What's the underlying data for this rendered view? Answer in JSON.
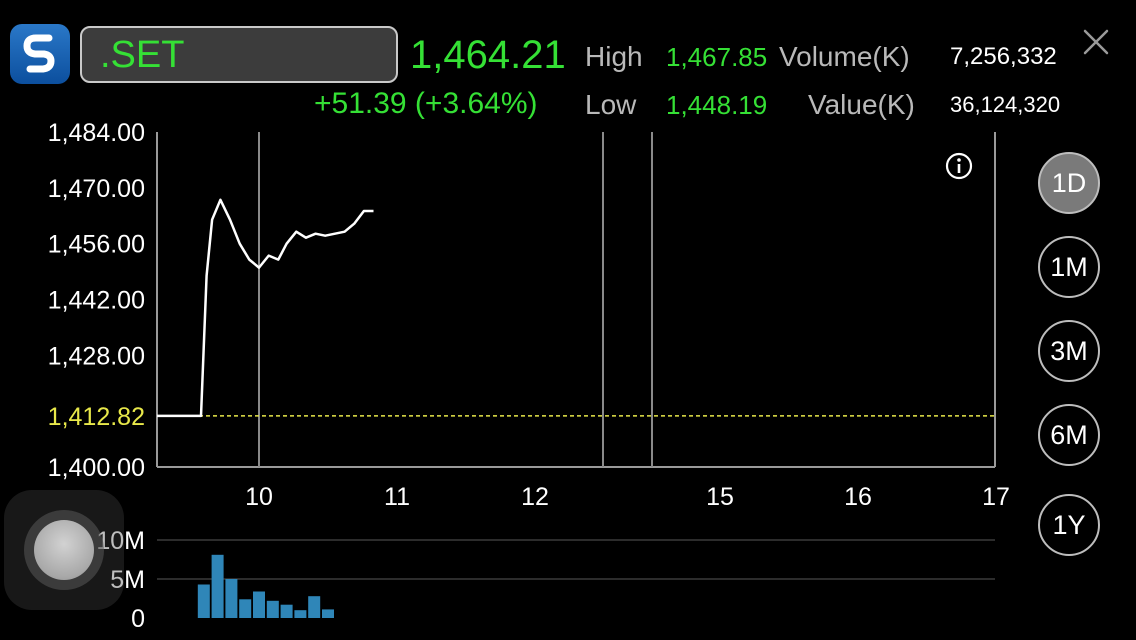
{
  "header": {
    "symbol": ".SET",
    "price": "1,464.21",
    "change": "+51.39 (+3.64%)",
    "high_label": "High",
    "high_value": "1,467.85",
    "low_label": "Low",
    "low_value": "1,448.19",
    "volume_label": "Volume(K)",
    "volume_value": "7,256,332",
    "value_label": "Value(K)",
    "value_value": "36,124,320"
  },
  "periods": [
    {
      "label": "1D",
      "active": true
    },
    {
      "label": "1M",
      "active": false
    },
    {
      "label": "3M",
      "active": false
    },
    {
      "label": "6M",
      "active": false
    },
    {
      "label": "1Y",
      "active": false
    }
  ],
  "colors": {
    "up": "#35e035",
    "reference": "#e8e84a",
    "volume_bar": "#2f86b8",
    "line": "#ffffff"
  },
  "icons": [
    "app-logo-icon",
    "close-icon",
    "info-icon"
  ],
  "chart_data": [
    {
      "type": "line",
      "title": "",
      "x_ticks": [
        "10",
        "11",
        "12",
        "15",
        "16",
        "17"
      ],
      "y_ticks": [
        "1,484.00",
        "1,470.00",
        "1,456.00",
        "1,442.00",
        "1,428.00",
        "1,400.00"
      ],
      "ylim": [
        1400,
        1484
      ],
      "reference_label": "1,412.82",
      "reference_value": 1412.82,
      "series": [
        {
          "x": [
            9.0,
            9.58,
            9.62,
            9.66,
            9.72,
            9.79,
            9.86,
            9.93,
            10.0,
            10.07,
            10.14,
            10.2,
            10.27,
            10.34,
            10.41,
            10.48,
            10.55,
            10.62,
            10.69,
            10.76,
            10.83
          ],
          "y": [
            1412.82,
            1412.82,
            1448,
            1462,
            1467,
            1462,
            1456,
            1452,
            1450,
            1453,
            1452,
            1456,
            1459,
            1457.5,
            1458.5,
            1458,
            1458.5,
            1459,
            1461,
            1464.2,
            1464.2
          ]
        }
      ]
    },
    {
      "type": "bar",
      "title": "",
      "y_ticks": [
        "10M",
        "5M",
        "0"
      ],
      "ylim": [
        0,
        10
      ],
      "x": [
        9.6,
        9.7,
        9.8,
        9.9,
        10.0,
        10.1,
        10.2,
        10.3,
        10.4,
        10.5
      ],
      "values": [
        4.3,
        8.1,
        5.0,
        2.4,
        3.4,
        2.2,
        1.7,
        1.0,
        2.8,
        1.1
      ]
    }
  ]
}
